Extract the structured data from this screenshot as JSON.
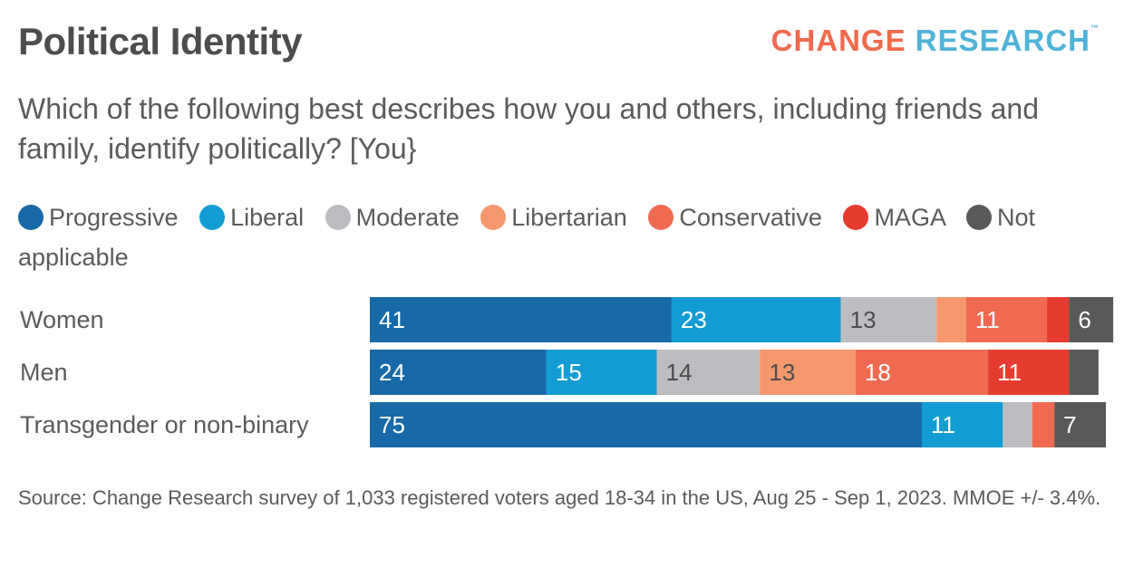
{
  "logo": {
    "word1": "CHANGE",
    "word2": "RESEARCH",
    "tm": "™",
    "colors": {
      "word1": "#ef6a4c",
      "word2": "#4fb3d9"
    }
  },
  "chart_data": {
    "type": "bar",
    "orientation": "horizontal",
    "stacked": true,
    "title": "Political Identity",
    "subtitle": "Which of the following best describes how you and others, including friends and family, identify politically? [You}",
    "categories": [
      "Women",
      "Men",
      "Transgender or non-binary"
    ],
    "series": [
      {
        "name": "Progressive",
        "color": "#1769a8",
        "values": [
          41,
          24,
          75
        ]
      },
      {
        "name": "Liberal",
        "color": "#139bd3",
        "values": [
          23,
          15,
          11
        ]
      },
      {
        "name": "Moderate",
        "color": "#bcbdc0",
        "values": [
          13,
          14,
          4
        ]
      },
      {
        "name": "Libertarian",
        "color": "#f5986e",
        "values": [
          4,
          13,
          0
        ]
      },
      {
        "name": "Conservative",
        "color": "#f06a52",
        "values": [
          11,
          18,
          3
        ]
      },
      {
        "name": "MAGA",
        "color": "#e63b2f",
        "values": [
          3,
          11,
          0
        ]
      },
      {
        "name": "Not applicable",
        "color": "#58595b",
        "values": [
          6,
          4,
          7
        ]
      }
    ],
    "label_threshold": 5,
    "dark_label_series": [
      "Moderate",
      "Libertarian"
    ],
    "xlim": [
      0,
      100
    ],
    "legend_position": "top",
    "grid": false,
    "source": "Source: Change Research survey of 1,033 registered voters aged 18-34 in the US, Aug 25 - Sep 1, 2023. MMOE +/- 3.4%."
  }
}
